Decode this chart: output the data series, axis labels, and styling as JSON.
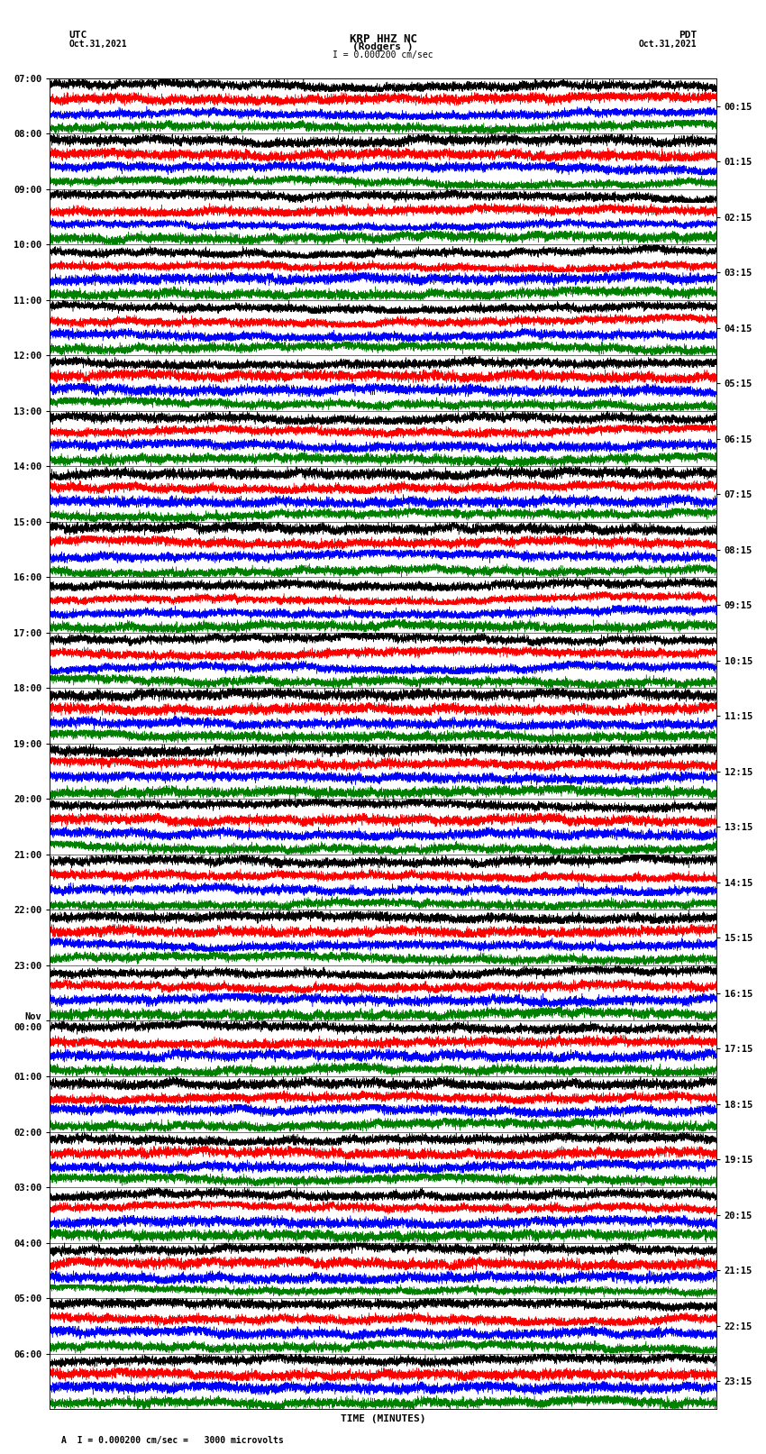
{
  "title_line1": "KRP HHZ NC",
  "title_line2": "(Rodgers )",
  "title_line3": "I = 0.000200 cm/sec",
  "label_left_top": "UTC",
  "label_left_date": "Oct.31,2021",
  "label_right_top": "PDT",
  "label_right_date": "Oct.31,2021",
  "xlabel": "TIME (MINUTES)",
  "footer": "A  I = 0.000200 cm/sec =   3000 microvolts",
  "left_times": [
    "07:00",
    "08:00",
    "09:00",
    "10:00",
    "11:00",
    "12:00",
    "13:00",
    "14:00",
    "15:00",
    "16:00",
    "17:00",
    "18:00",
    "19:00",
    "20:00",
    "21:00",
    "22:00",
    "23:00",
    "Nov\n00:00",
    "01:00",
    "02:00",
    "03:00",
    "04:00",
    "05:00",
    "06:00"
  ],
  "right_times": [
    "00:15",
    "01:15",
    "02:15",
    "03:15",
    "04:15",
    "05:15",
    "06:15",
    "07:15",
    "08:15",
    "09:15",
    "10:15",
    "11:15",
    "12:15",
    "13:15",
    "14:15",
    "15:15",
    "16:15",
    "17:15",
    "18:15",
    "19:15",
    "20:15",
    "21:15",
    "22:15",
    "23:15"
  ],
  "colors": [
    "black",
    "red",
    "blue",
    "green"
  ],
  "n_rows": 24,
  "traces_per_row": 4,
  "x_min": 0,
  "x_max": 15,
  "xticks": [
    0,
    1,
    2,
    3,
    4,
    5,
    6,
    7,
    8,
    9,
    10,
    11,
    12,
    13,
    14,
    15
  ],
  "amplitude": 0.48,
  "bg_color": "white",
  "tick_label_fontsize": 7.5,
  "title_fontsize": 9,
  "label_fontsize": 8
}
